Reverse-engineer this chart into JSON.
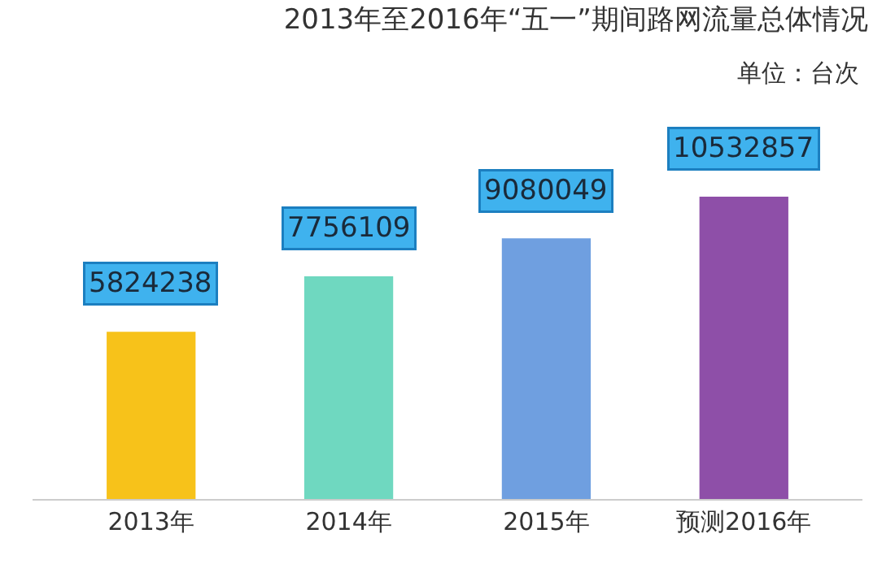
{
  "chart_data": {
    "type": "bar",
    "title": "2013年至2016年“五一”期间路网流量总体情况",
    "subtitle": "单位：台次",
    "categories": [
      "2013年",
      "2014年",
      "2015年",
      "预测2016年"
    ],
    "values": [
      5824238,
      7756109,
      9080049,
      10532857
    ],
    "colors": [
      "#f7c21a",
      "#6fd8c0",
      "#6f9fe0",
      "#8e4fa8"
    ],
    "tick_labels": "x",
    "data_labels": true
  }
}
